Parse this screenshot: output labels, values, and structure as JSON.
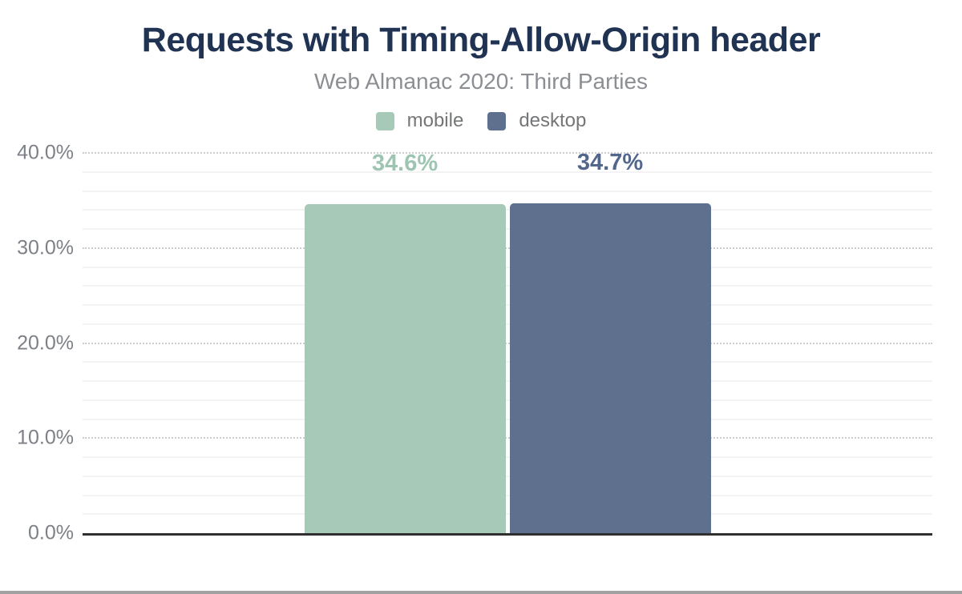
{
  "chart": {
    "title": "Requests with Timing-Allow-Origin header",
    "subtitle": "Web Almanac 2020: Third Parties"
  },
  "chart_data": {
    "type": "bar",
    "title": "Requests with Timing-Allow-Origin header",
    "subtitle": "Web Almanac 2020: Third Parties",
    "categories": [
      ""
    ],
    "series": [
      {
        "name": "mobile",
        "values": [
          34.6
        ],
        "annotation": "34.6%",
        "color": "#a6c9b8",
        "label_color": "#9ec4b2"
      },
      {
        "name": "desktop",
        "values": [
          34.7
        ],
        "annotation": "34.7%",
        "color": "#5e708e",
        "label_color": "#53678d"
      }
    ],
    "xlabel": "",
    "ylabel": "",
    "ylim": [
      0,
      40
    ],
    "yticks": [
      0,
      10,
      20,
      30,
      40
    ],
    "ytick_labels": [
      "0.0%",
      "10.0%",
      "20.0%",
      "30.0%",
      "40.0%"
    ],
    "grid": {
      "major_step": 10,
      "minor_step": 2,
      "major_style": "dotted",
      "minor_style": "solid",
      "grid_on": true
    },
    "legend_position": "top",
    "annotation_position": "above-bar"
  },
  "colors": {
    "background": "#ffffff",
    "title_text": "#213353",
    "subtitle_text": "#8b8e92",
    "legend_text": "#747678",
    "axis_tick_text": "#7d8187",
    "axis_line": "#2f2f2f",
    "gridline_major": "#cccccc",
    "gridline_minor": "#f3f3f3",
    "frame_bottom_rule": "#a1a1a1",
    "mobile_series": "#a6c9b8",
    "desktop_series": "#5e708e"
  }
}
